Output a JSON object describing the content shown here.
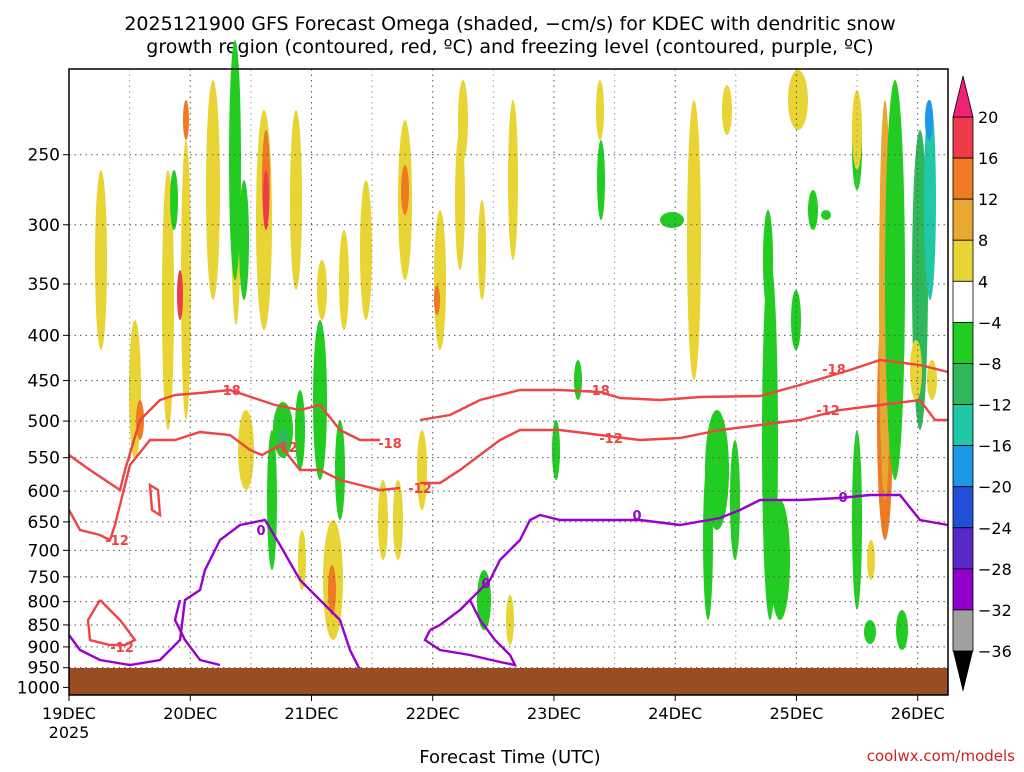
{
  "chart_data": {
    "type": "heatmap",
    "title_line1": "2025121900 GFS Forecast Omega (shaded, −cm/s) for KDEC with dendritic snow",
    "title_line2": "growth region (contoured, red, ºC) and freezing level (contoured, purple, ºC)",
    "xlabel": "Forecast Time (UTC)",
    "watermark": "coolwx.com/models",
    "x_range_hours": [
      0,
      174
    ],
    "x_ticks": [
      {
        "label": "19DEC",
        "hour": 0
      },
      {
        "label": "20DEC",
        "hour": 24
      },
      {
        "label": "21DEC",
        "hour": 48
      },
      {
        "label": "22DEC",
        "hour": 72
      },
      {
        "label": "23DEC",
        "hour": 96
      },
      {
        "label": "24DEC",
        "hour": 120
      },
      {
        "label": "25DEC",
        "hour": 144
      },
      {
        "label": "26DEC",
        "hour": 168
      }
    ],
    "x_year_label": "2025",
    "y_scale": "log-pressure",
    "y_range_hpa": [
      1020,
      200
    ],
    "y_ticks": [
      250,
      300,
      350,
      400,
      450,
      500,
      550,
      600,
      650,
      700,
      750,
      800,
      850,
      900,
      950,
      1000
    ],
    "colorbar": {
      "labels": [
        "20",
        "16",
        "12",
        "8",
        "4",
        "−4",
        "−8",
        "−12",
        "−16",
        "−20",
        "−24",
        "−28",
        "−32",
        "−36"
      ],
      "colors": [
        "#ee3a4a",
        "#ee7a24",
        "#e8a832",
        "#e8d434",
        "#ffffff",
        "#22cc22",
        "#2fb85a",
        "#21c8a8",
        "#1c98e8",
        "#2050d8",
        "#5a28c8",
        "#9000c8",
        "#a0a0a0"
      ],
      "top_arrow_color": "#ee2277",
      "bottom_arrow_color": "#000000"
    },
    "contour_labels_red": [
      "-18",
      "-12"
    ],
    "contour_label_purple": "0",
    "colors": {
      "red_contour": "#ee4444",
      "purple_contour": "#9900cc",
      "ground": "#994d22"
    }
  }
}
